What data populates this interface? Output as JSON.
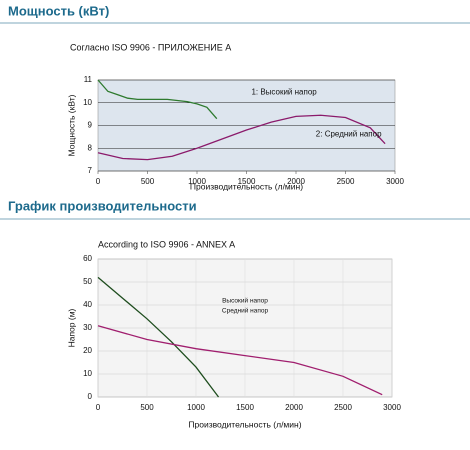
{
  "sections": [
    "Мощность (кВт)",
    "График производительности"
  ],
  "chart_data": [
    {
      "type": "line",
      "title": "Согласно ISO 9906 - ПРИЛОЖЕНИЕ А",
      "xlabel": "Производительность (л/мин)",
      "ylabel": "Мощность (кВт)",
      "xlim": [
        0,
        3000
      ],
      "xticks": [
        0,
        500,
        1000,
        1500,
        2000,
        2500,
        3000
      ],
      "ylim": [
        7,
        11
      ],
      "yticks": [
        7,
        8,
        9,
        10,
        11
      ],
      "grid": "y",
      "background": "#dde5ee",
      "legend": "annotation",
      "series": [
        {
          "name": "1: Высокий напор",
          "color": "#2e7a2e",
          "x": [
            0,
            100,
            200,
            300,
            400,
            500,
            600,
            700,
            800,
            900,
            1000,
            1100,
            1200
          ],
          "values": [
            11.0,
            10.5,
            10.35,
            10.2,
            10.15,
            10.15,
            10.15,
            10.15,
            10.1,
            10.05,
            9.95,
            9.8,
            9.3
          ]
        },
        {
          "name": "2: Средний напор",
          "color": "#8b1a6b",
          "x": [
            0,
            250,
            500,
            750,
            1000,
            1250,
            1500,
            1750,
            2000,
            2250,
            2500,
            2750,
            2900
          ],
          "values": [
            7.8,
            7.55,
            7.5,
            7.65,
            8.0,
            8.4,
            8.8,
            9.15,
            9.4,
            9.45,
            9.35,
            8.9,
            8.2
          ]
        }
      ]
    },
    {
      "type": "line",
      "title": "According to ISO 9906 - ANNEX A",
      "xlabel": "Производительность (л/мин)",
      "ylabel": "Напор (м)",
      "xlim": [
        0,
        3000
      ],
      "xticks": [
        0,
        500,
        1000,
        1500,
        2000,
        2500,
        3000
      ],
      "ylim": [
        0,
        60
      ],
      "yticks": [
        0,
        10,
        20,
        30,
        40,
        50,
        60
      ],
      "grid": "both",
      "background": "#f4f4f4",
      "legend": "center",
      "series": [
        {
          "name": "Высокий напор",
          "color": "#1e4d1e",
          "x": [
            0,
            250,
            500,
            750,
            1000,
            1230
          ],
          "values": [
            52,
            43,
            34,
            24,
            13,
            0
          ]
        },
        {
          "name": "Средний напор",
          "color": "#a01e6e",
          "x": [
            0,
            500,
            1000,
            1500,
            2000,
            2500,
            2900
          ],
          "values": [
            31,
            25,
            21,
            18,
            15,
            9,
            1
          ]
        }
      ]
    }
  ]
}
